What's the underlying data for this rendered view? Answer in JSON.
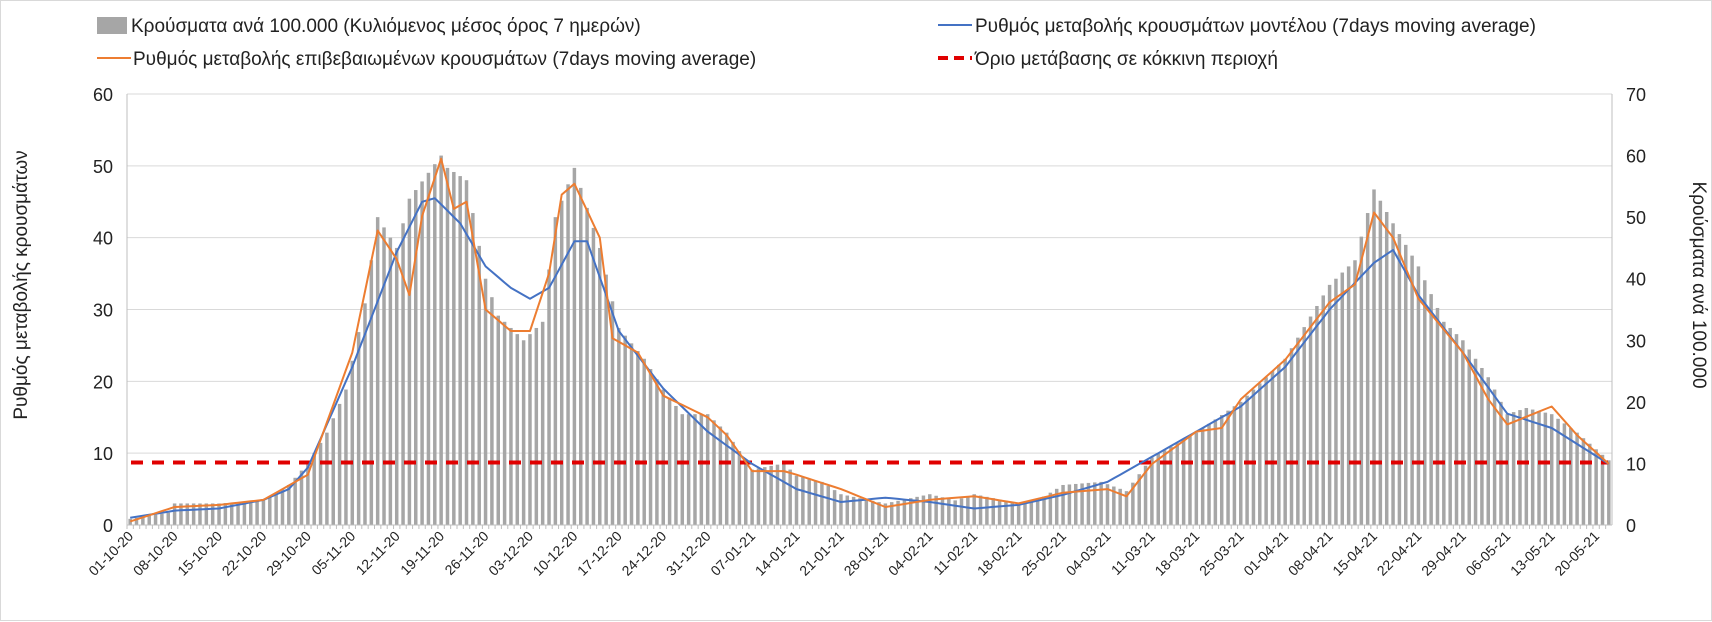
{
  "chart_data": {
    "type": "bar",
    "legend": [
      {
        "key": "bars",
        "label": "Κρούσματα ανά 100.000 (Κυλιόμενος μέσος όρος 7 ημερών)",
        "color": "#a6a6a6"
      },
      {
        "key": "model",
        "label": "Ρυθμός μεταβολής κρουσμάτων μοντέλου (7days moving average)",
        "color": "#4472c4"
      },
      {
        "key": "confirmed",
        "label": "Ρυθμός μεταβολής επιβεβαιωμένων κρουσμάτων (7days moving average)",
        "color": "#ed7d31"
      },
      {
        "key": "threshold",
        "label": "Όριο μετάβασης σε κόκκινη περιοχή",
        "color": "#e00000"
      }
    ],
    "ylabel_left": "Ρυθμός μεταβολής κρουσμάτων",
    "ylabel_right": "Κρούσματα ανά 100.000",
    "ylim_left": [
      0,
      60
    ],
    "ylim_right": [
      0,
      70
    ],
    "yticks_left": [
      "0",
      "10",
      "20",
      "30",
      "40",
      "50",
      "60"
    ],
    "yticks_right": [
      "0",
      "10",
      "20",
      "30",
      "40",
      "50",
      "60",
      "70"
    ],
    "x_start": "2020-10-01",
    "x_end": "2021-05-22",
    "x_ticks": [
      "01-10-20",
      "08-10-20",
      "15-10-20",
      "22-10-20",
      "29-10-20",
      "05-11-20",
      "12-11-20",
      "19-11-20",
      "26-11-20",
      "03-12-20",
      "10-12-20",
      "17-12-20",
      "24-12-20",
      "31-12-20",
      "07-01-21",
      "14-01-21",
      "21-01-21",
      "28-01-21",
      "04-02-21",
      "11-02-21",
      "18-02-21",
      "25-02-21",
      "04-03-21",
      "11-03-21",
      "18-03-21",
      "25-03-21",
      "01-04-21",
      "08-04-21",
      "15-04-21",
      "22-04-21",
      "29-04-21",
      "06-05-21",
      "13-05-21",
      "20-05-21"
    ],
    "bars_per_100k_keypoints": [
      [
        "2020-10-01",
        1
      ],
      [
        "2020-10-07",
        2
      ],
      [
        "2020-10-08",
        3.5
      ],
      [
        "2020-10-15",
        3.5
      ],
      [
        "2020-10-22",
        4
      ],
      [
        "2020-10-26",
        6.5
      ],
      [
        "2020-10-29",
        10
      ],
      [
        "2020-11-01",
        15
      ],
      [
        "2020-11-04",
        22
      ],
      [
        "2020-11-07",
        36
      ],
      [
        "2020-11-09",
        50
      ],
      [
        "2020-11-12",
        45
      ],
      [
        "2020-11-14",
        53
      ],
      [
        "2020-11-19",
        60
      ],
      [
        "2020-11-20",
        58
      ],
      [
        "2020-11-23",
        56
      ],
      [
        "2020-11-26",
        40
      ],
      [
        "2020-11-28",
        34
      ],
      [
        "2020-12-02",
        30
      ],
      [
        "2020-12-05",
        33
      ],
      [
        "2020-12-07",
        50
      ],
      [
        "2020-12-10",
        58
      ],
      [
        "2020-12-14",
        45
      ],
      [
        "2020-12-17",
        32
      ],
      [
        "2020-12-21",
        27
      ],
      [
        "2020-12-24",
        22
      ],
      [
        "2020-12-27",
        18
      ],
      [
        "2020-12-31",
        18
      ],
      [
        "2021-01-03",
        15
      ],
      [
        "2021-01-07",
        9
      ],
      [
        "2021-01-12",
        10
      ],
      [
        "2021-01-14",
        8
      ],
      [
        "2021-01-18",
        7
      ],
      [
        "2021-01-21",
        5
      ],
      [
        "2021-01-28",
        3.5
      ],
      [
        "2021-02-04",
        5
      ],
      [
        "2021-02-08",
        4
      ],
      [
        "2021-02-11",
        5
      ],
      [
        "2021-02-18",
        3.5
      ],
      [
        "2021-02-21",
        4
      ],
      [
        "2021-02-25",
        6.5
      ],
      [
        "2021-03-03",
        7
      ],
      [
        "2021-03-07",
        5.5
      ],
      [
        "2021-03-11",
        11
      ],
      [
        "2021-03-18",
        15
      ],
      [
        "2021-03-25",
        20
      ],
      [
        "2021-04-01",
        27
      ],
      [
        "2021-04-08",
        39
      ],
      [
        "2021-04-12",
        43
      ],
      [
        "2021-04-15",
        54.5
      ],
      [
        "2021-04-18",
        49
      ],
      [
        "2021-04-22",
        42
      ],
      [
        "2021-04-26",
        33
      ],
      [
        "2021-04-29",
        30
      ],
      [
        "2021-05-03",
        24
      ],
      [
        "2021-05-06",
        18
      ],
      [
        "2021-05-09",
        19
      ],
      [
        "2021-05-13",
        18
      ],
      [
        "2021-05-17",
        15
      ],
      [
        "2021-05-22",
        10.5
      ]
    ],
    "model_rate_keypoints": [
      [
        "2020-10-01",
        1
      ],
      [
        "2020-10-08",
        2
      ],
      [
        "2020-10-15",
        2.3
      ],
      [
        "2020-10-22",
        3.5
      ],
      [
        "2020-10-26",
        5
      ],
      [
        "2020-10-29",
        8
      ],
      [
        "2020-11-05",
        22
      ],
      [
        "2020-11-12",
        38
      ],
      [
        "2020-11-16",
        45
      ],
      [
        "2020-11-18",
        45.5
      ],
      [
        "2020-11-22",
        42
      ],
      [
        "2020-11-26",
        36
      ],
      [
        "2020-11-30",
        33
      ],
      [
        "2020-12-03",
        31.5
      ],
      [
        "2020-12-06",
        33
      ],
      [
        "2020-12-10",
        39.5
      ],
      [
        "2020-12-12",
        39.5
      ],
      [
        "2020-12-17",
        27
      ],
      [
        "2020-12-24",
        19
      ],
      [
        "2020-12-31",
        13
      ],
      [
        "2021-01-07",
        8.5
      ],
      [
        "2021-01-14",
        5
      ],
      [
        "2021-01-21",
        3.2
      ],
      [
        "2021-01-28",
        3.8
      ],
      [
        "2021-02-04",
        3.2
      ],
      [
        "2021-02-11",
        2.3
      ],
      [
        "2021-02-18",
        2.8
      ],
      [
        "2021-02-25",
        4.2
      ],
      [
        "2021-03-04",
        6
      ],
      [
        "2021-03-11",
        9.5
      ],
      [
        "2021-03-18",
        13
      ],
      [
        "2021-03-25",
        16.5
      ],
      [
        "2021-04-01",
        22
      ],
      [
        "2021-04-08",
        30
      ],
      [
        "2021-04-15",
        36.5
      ],
      [
        "2021-04-18",
        38.3
      ],
      [
        "2021-04-22",
        32
      ],
      [
        "2021-04-29",
        24
      ],
      [
        "2021-05-06",
        15.5
      ],
      [
        "2021-05-13",
        13.5
      ],
      [
        "2021-05-22",
        8.5
      ]
    ],
    "confirmed_rate_keypoints": [
      [
        "2020-10-01",
        0.5
      ],
      [
        "2020-10-08",
        2.5
      ],
      [
        "2020-10-15",
        2.8
      ],
      [
        "2020-10-22",
        3.5
      ],
      [
        "2020-10-29",
        7
      ],
      [
        "2020-11-05",
        24
      ],
      [
        "2020-11-09",
        41
      ],
      [
        "2020-11-12",
        37
      ],
      [
        "2020-11-14",
        32
      ],
      [
        "2020-11-16",
        43
      ],
      [
        "2020-11-19",
        51
      ],
      [
        "2020-11-21",
        44
      ],
      [
        "2020-11-23",
        45
      ],
      [
        "2020-11-26",
        30
      ],
      [
        "2020-11-30",
        27
      ],
      [
        "2020-12-03",
        27
      ],
      [
        "2020-12-06",
        35
      ],
      [
        "2020-12-08",
        46
      ],
      [
        "2020-12-10",
        47.5
      ],
      [
        "2020-12-14",
        40
      ],
      [
        "2020-12-16",
        26
      ],
      [
        "2020-12-20",
        24
      ],
      [
        "2020-12-24",
        18
      ],
      [
        "2020-12-31",
        15
      ],
      [
        "2021-01-03",
        12.5
      ],
      [
        "2021-01-07",
        7.5
      ],
      [
        "2021-01-12",
        7.5
      ],
      [
        "2021-01-14",
        7
      ],
      [
        "2021-01-21",
        5
      ],
      [
        "2021-01-28",
        2.5
      ],
      [
        "2021-02-04",
        3.5
      ],
      [
        "2021-02-11",
        4
      ],
      [
        "2021-02-18",
        3
      ],
      [
        "2021-02-25",
        4.5
      ],
      [
        "2021-03-04",
        5
      ],
      [
        "2021-03-07",
        4
      ],
      [
        "2021-03-11",
        8.5
      ],
      [
        "2021-03-18",
        13
      ],
      [
        "2021-03-22",
        13.5
      ],
      [
        "2021-03-25",
        17.5
      ],
      [
        "2021-04-01",
        23
      ],
      [
        "2021-04-08",
        31
      ],
      [
        "2021-04-12",
        33.5
      ],
      [
        "2021-04-15",
        43.5
      ],
      [
        "2021-04-18",
        40
      ],
      [
        "2021-04-22",
        31.5
      ],
      [
        "2021-04-29",
        24
      ],
      [
        "2021-05-03",
        17.5
      ],
      [
        "2021-05-06",
        14
      ],
      [
        "2021-05-13",
        16.5
      ],
      [
        "2021-05-17",
        12.5
      ],
      [
        "2021-05-22",
        8.5
      ]
    ],
    "threshold_value": 8.7,
    "grid": "horizontal",
    "legend_position": "top"
  }
}
